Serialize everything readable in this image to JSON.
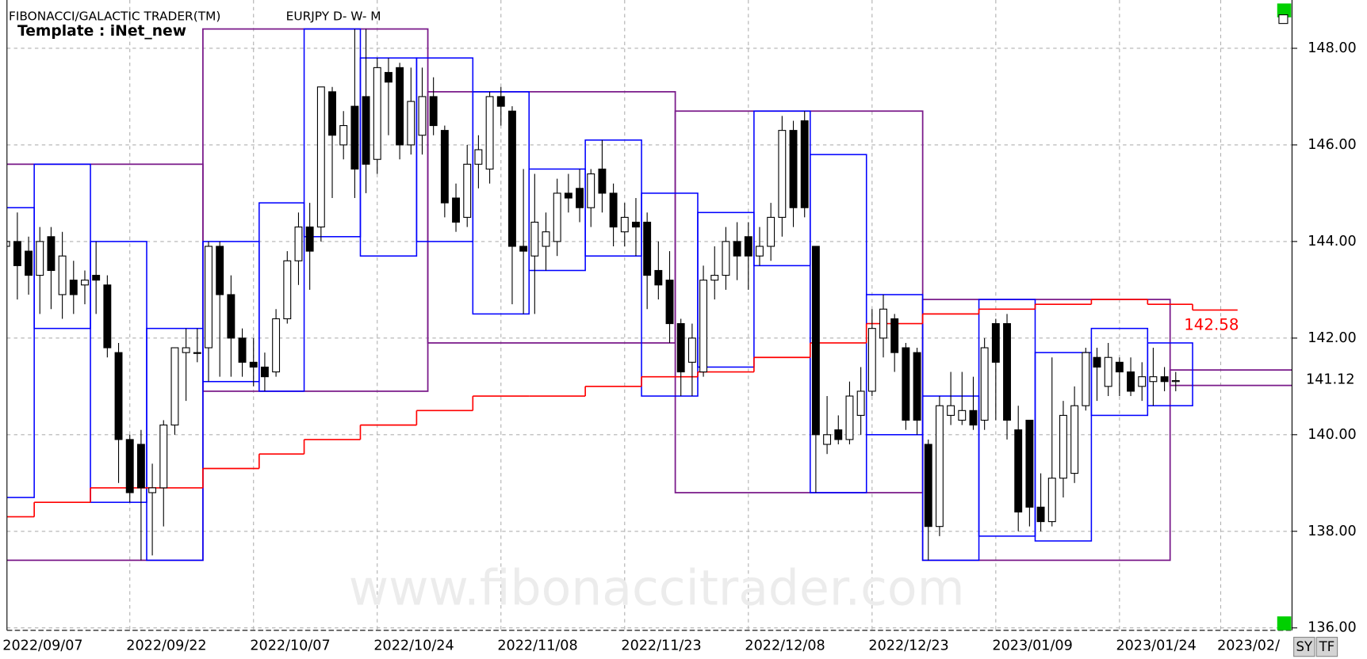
{
  "header": {
    "title": "FIBONACCI/GALACTIC TRADER(TM)",
    "symbol": "EURJPY D- W- M",
    "template": "Template : iNet_new",
    "watermark": "www.fibonaccitrader.com"
  },
  "buttons": [
    "SY",
    "TF"
  ],
  "chart_data": {
    "type": "candlestick",
    "categories": [
      "2022/09/07",
      null,
      null,
      null,
      null,
      null,
      null,
      null,
      null,
      null,
      null,
      "2022/09/22",
      null,
      null,
      null,
      null,
      null,
      null,
      null,
      null,
      null,
      null,
      "2022/10/07",
      null,
      null,
      null,
      null,
      null,
      null,
      null,
      null,
      null,
      null,
      "2022/10/24",
      null,
      null,
      null,
      null,
      null,
      null,
      null,
      null,
      null,
      null,
      "2022/11/08",
      null,
      null,
      null,
      null,
      null,
      null,
      null,
      null,
      null,
      null,
      "2022/11/23",
      null,
      null,
      null,
      null,
      null,
      null,
      null,
      null,
      null,
      null,
      "2022/12/08",
      null,
      null,
      null,
      null,
      null,
      null,
      null,
      null,
      null,
      null,
      "2022/12/23",
      null,
      null,
      null,
      null,
      null,
      null,
      null,
      null,
      null,
      null,
      "2023/01/09",
      null,
      null,
      null,
      null,
      null,
      null,
      null,
      null,
      null,
      null,
      "2023/01/24",
      null,
      null,
      null,
      null,
      null,
      null,
      null,
      null,
      "2023/02/",
      null,
      null,
      null,
      null,
      null,
      null
    ],
    "open": [
      143.9,
      144.0,
      143.8,
      143.3,
      144.1,
      142.9,
      143.2,
      143.1,
      143.3,
      143.1,
      141.7,
      139.9,
      139.8,
      138.8,
      138.9,
      140.2,
      141.7,
      141.7,
      141.8,
      143.9,
      142.9,
      142.0,
      141.5,
      141.4,
      141.3,
      142.4,
      143.6,
      144.3,
      144.3,
      147.1,
      146.0,
      146.8,
      147.0,
      145.7,
      147.5,
      147.6,
      146.0,
      146.2,
      147.0,
      146.3,
      144.9,
      144.5,
      145.6,
      145.5,
      147.0,
      146.7,
      143.9,
      143.7,
      143.9,
      144.0,
      145.0,
      145.1,
      144.7,
      145.5,
      145.0,
      144.2,
      144.4,
      144.4,
      143.4,
      143.2,
      142.3,
      141.5,
      141.3,
      143.2,
      143.3,
      144.0,
      144.1,
      143.7,
      143.9,
      144.5,
      146.3,
      146.5,
      143.9,
      139.8,
      140.1,
      139.9,
      140.4,
      140.9,
      142.0,
      142.4,
      141.8,
      141.7,
      139.8,
      138.1,
      140.4,
      140.3,
      140.5,
      140.3,
      142.3,
      142.3,
      140.1,
      140.3,
      138.5,
      138.2,
      139.1,
      139.2,
      140.6,
      141.6,
      141.0,
      141.5,
      141.3,
      141.0,
      141.1,
      141.2,
      141.1,
      null,
      null,
      null,
      null,
      null,
      null,
      null,
      null,
      null,
      null
    ],
    "high": [
      144.3,
      144.6,
      144.1,
      144.3,
      144.3,
      144.2,
      143.6,
      143.4,
      144.0,
      143.3,
      141.9,
      140.0,
      140.1,
      139.4,
      140.3,
      141.8,
      142.2,
      142.2,
      144.0,
      144.0,
      143.3,
      142.2,
      142.0,
      141.7,
      142.6,
      143.8,
      144.6,
      144.8,
      147.2,
      147.2,
      146.7,
      148.4,
      148.4,
      147.8,
      147.8,
      147.7,
      147.6,
      147.6,
      147.4,
      146.4,
      145.2,
      146.0,
      146.2,
      147.1,
      147.2,
      146.8,
      145.5,
      145.4,
      144.6,
      145.3,
      145.4,
      145.5,
      145.5,
      146.1,
      145.2,
      144.8,
      144.9,
      144.6,
      144.0,
      143.8,
      142.4,
      142.3,
      143.5,
      143.9,
      144.3,
      144.4,
      144.4,
      144.3,
      144.8,
      146.6,
      146.5,
      146.7,
      143.9,
      140.8,
      140.4,
      141.1,
      141.4,
      142.6,
      142.9,
      142.5,
      141.9,
      141.8,
      139.9,
      140.8,
      141.3,
      141.3,
      141.2,
      142.0,
      142.4,
      142.5,
      140.6,
      140.3,
      139.2,
      141.6,
      140.7,
      141.0,
      141.8,
      141.8,
      141.9,
      141.6,
      141.6,
      141.5,
      141.8,
      141.4,
      141.3,
      null,
      null,
      null,
      null,
      null,
      null,
      null,
      null,
      null,
      null
    ],
    "low": [
      143.3,
      142.8,
      142.9,
      142.5,
      142.6,
      142.4,
      142.5,
      142.7,
      142.5,
      141.6,
      139.0,
      138.6,
      137.4,
      137.5,
      138.1,
      140.0,
      140.7,
      141.5,
      141.1,
      141.2,
      141.2,
      141.2,
      141.0,
      140.9,
      141.2,
      142.3,
      143.1,
      143.0,
      144.0,
      144.9,
      145.7,
      144.9,
      145.0,
      145.4,
      146.2,
      145.7,
      145.8,
      145.8,
      146.2,
      144.5,
      144.2,
      144.3,
      145.1,
      145.2,
      146.4,
      142.7,
      142.5,
      142.5,
      143.4,
      143.7,
      144.6,
      144.4,
      144.3,
      144.6,
      143.9,
      143.9,
      143.7,
      142.6,
      142.8,
      141.9,
      140.8,
      140.8,
      141.2,
      142.8,
      143.0,
      143.2,
      143.0,
      143.5,
      143.6,
      144.1,
      144.3,
      144.5,
      138.8,
      139.6,
      139.8,
      139.8,
      140.0,
      140.8,
      141.6,
      141.3,
      140.1,
      140.0,
      137.4,
      137.9,
      140.2,
      140.2,
      140.1,
      140.1,
      140.3,
      139.9,
      138.0,
      138.1,
      138.0,
      138.1,
      138.7,
      139.0,
      140.5,
      140.7,
      140.8,
      140.8,
      140.8,
      140.7,
      140.6,
      140.9,
      140.9,
      null,
      null,
      null,
      null,
      null,
      null,
      null,
      null,
      null,
      null
    ],
    "close": [
      144.0,
      143.5,
      143.3,
      144.0,
      143.4,
      143.7,
      142.9,
      143.2,
      143.2,
      141.8,
      139.9,
      138.8,
      138.9,
      138.9,
      140.2,
      141.8,
      141.8,
      141.7,
      143.9,
      142.9,
      142.0,
      141.5,
      141.4,
      141.2,
      142.4,
      143.6,
      144.3,
      143.8,
      147.2,
      146.2,
      146.4,
      145.5,
      145.6,
      147.6,
      147.3,
      146.0,
      146.9,
      147.0,
      146.4,
      144.8,
      144.4,
      145.6,
      145.9,
      147.0,
      146.8,
      143.9,
      143.8,
      144.4,
      144.2,
      145.0,
      144.9,
      144.7,
      145.4,
      145.0,
      144.3,
      144.5,
      144.3,
      143.3,
      143.1,
      142.3,
      141.3,
      142.0,
      143.2,
      143.3,
      144.0,
      143.7,
      143.7,
      143.9,
      144.5,
      146.3,
      144.7,
      144.7,
      140.0,
      140.0,
      139.9,
      140.8,
      140.9,
      142.2,
      142.6,
      141.7,
      140.3,
      140.3,
      138.1,
      140.6,
      140.6,
      140.5,
      140.2,
      141.8,
      141.5,
      140.3,
      138.4,
      138.5,
      138.2,
      139.1,
      140.4,
      140.6,
      141.7,
      141.4,
      141.6,
      141.3,
      140.9,
      141.2,
      141.2,
      141.1,
      141.12,
      null,
      null,
      null,
      null,
      null,
      null,
      null,
      null,
      null,
      null
    ],
    "last_price": 141.12,
    "weekly_boxes": [
      {
        "first": 0,
        "last": 2,
        "high": 144.7,
        "low": 138.7
      },
      {
        "first": 3,
        "last": 7,
        "high": 145.6,
        "low": 142.2
      },
      {
        "first": 8,
        "last": 12,
        "high": 144.0,
        "low": 138.6
      },
      {
        "first": 13,
        "last": 17,
        "high": 142.2,
        "low": 137.4
      },
      {
        "first": 18,
        "last": 22,
        "high": 144.0,
        "low": 141.1
      },
      {
        "first": 23,
        "last": 26,
        "high": 144.8,
        "low": 140.9
      },
      {
        "first": 27,
        "last": 31,
        "high": 148.4,
        "low": 144.1
      },
      {
        "first": 32,
        "last": 36,
        "high": 147.8,
        "low": 143.7
      },
      {
        "first": 37,
        "last": 41,
        "high": 147.8,
        "low": 144.0
      },
      {
        "first": 42,
        "last": 46,
        "high": 147.1,
        "low": 142.5
      },
      {
        "first": 47,
        "last": 51,
        "high": 145.5,
        "low": 143.4
      },
      {
        "first": 52,
        "last": 56,
        "high": 146.1,
        "low": 143.7
      },
      {
        "first": 57,
        "last": 61,
        "high": 145.0,
        "low": 140.8
      },
      {
        "first": 62,
        "last": 66,
        "high": 144.6,
        "low": 141.4
      },
      {
        "first": 67,
        "last": 71,
        "high": 146.7,
        "low": 143.5
      },
      {
        "first": 72,
        "last": 76,
        "high": 145.8,
        "low": 138.8
      },
      {
        "first": 77,
        "last": 81,
        "high": 142.9,
        "low": 140.0
      },
      {
        "first": 82,
        "last": 86,
        "high": 140.8,
        "low": 137.4
      },
      {
        "first": 87,
        "last": 91,
        "high": 142.8,
        "low": 137.9
      },
      {
        "first": 92,
        "last": 96,
        "high": 141.7,
        "low": 137.8
      },
      {
        "first": 97,
        "last": 101,
        "high": 142.2,
        "low": 140.4
      },
      {
        "first": 102,
        "last": 105,
        "high": 141.9,
        "low": 140.6
      }
    ],
    "weekly_color": "#0000ff",
    "monthly_boxes": [
      {
        "first": 0,
        "last": 17,
        "high": 145.6,
        "low": 137.4
      },
      {
        "first": 18,
        "last": 37,
        "high": 148.4,
        "low": 140.9
      },
      {
        "first": 38,
        "last": 59,
        "high": 147.1,
        "low": 141.9
      },
      {
        "first": 60,
        "last": 81,
        "high": 146.7,
        "low": 138.8
      },
      {
        "first": 82,
        "last": 103,
        "high": 142.8,
        "low": 137.4
      },
      {
        "first": 104,
        "last": 114,
        "high": 141.34,
        "low": 141.02
      }
    ],
    "monthly_color": "#7a1a8a",
    "stop_line": [
      {
        "first": 0,
        "last": 2,
        "value": 138.3
      },
      {
        "first": 3,
        "last": 7,
        "value": 138.6
      },
      {
        "first": 8,
        "last": 12,
        "value": 138.9
      },
      {
        "first": 13,
        "last": 17,
        "value": 138.9
      },
      {
        "first": 18,
        "last": 22,
        "value": 139.3
      },
      {
        "first": 23,
        "last": 26,
        "value": 139.6
      },
      {
        "first": 27,
        "last": 31,
        "value": 139.9
      },
      {
        "first": 32,
        "last": 36,
        "value": 140.2
      },
      {
        "first": 37,
        "last": 41,
        "value": 140.5
      },
      {
        "first": 42,
        "last": 46,
        "value": 140.8
      },
      {
        "first": 47,
        "last": 51,
        "value": 140.8
      },
      {
        "first": 52,
        "last": 56,
        "value": 141.0
      },
      {
        "first": 57,
        "last": 61,
        "value": 141.2
      },
      {
        "first": 62,
        "last": 66,
        "value": 141.3
      },
      {
        "first": 67,
        "last": 71,
        "value": 141.6
      },
      {
        "first": 72,
        "last": 76,
        "value": 141.9
      },
      {
        "first": 77,
        "last": 81,
        "value": 142.3
      },
      {
        "first": 82,
        "last": 86,
        "value": 142.5
      },
      {
        "first": 87,
        "last": 91,
        "value": 142.6
      },
      {
        "first": 92,
        "last": 96,
        "value": 142.7
      },
      {
        "first": 97,
        "last": 101,
        "value": 142.8
      },
      {
        "first": 102,
        "last": 105,
        "value": 142.7
      },
      {
        "first": 106,
        "last": 109,
        "value": 142.58
      }
    ],
    "stop_color": "#ff0000",
    "ylim": [
      135.95,
      149.0
    ],
    "yticks": [
      {
        "value": 136,
        "label": "136.00"
      },
      {
        "value": 138,
        "label": "138.00"
      },
      {
        "value": 140,
        "label": "140.00"
      },
      {
        "value": 142,
        "label": "142.00"
      },
      {
        "value": 144,
        "label": "144.00"
      },
      {
        "value": 146,
        "label": "146.00"
      },
      {
        "value": 148,
        "label": "148.00"
      }
    ],
    "grid": true
  }
}
